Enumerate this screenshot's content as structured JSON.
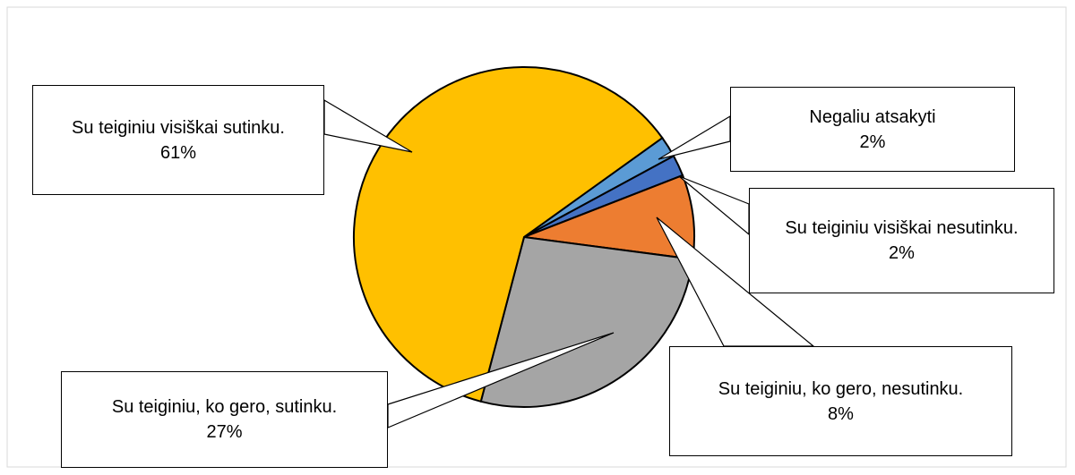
{
  "chart_data": {
    "type": "pie",
    "categories": [
      "Negaliu atsakyti",
      "Su teiginiu visiškai nesutinku.",
      "Su teiginiu, ko gero, nesutinku.",
      "Su teiginiu, ko gero, sutinku.",
      "Su teiginiu visiškai sutinku."
    ],
    "values": [
      2,
      2,
      8,
      27,
      61
    ],
    "value_labels": [
      "2%",
      "2%",
      "8%",
      "27%",
      "61%"
    ],
    "colors": [
      "#5b9bd5",
      "#4472c4",
      "#ed7d31",
      "#a5a5a5",
      "#ffc000"
    ]
  }
}
